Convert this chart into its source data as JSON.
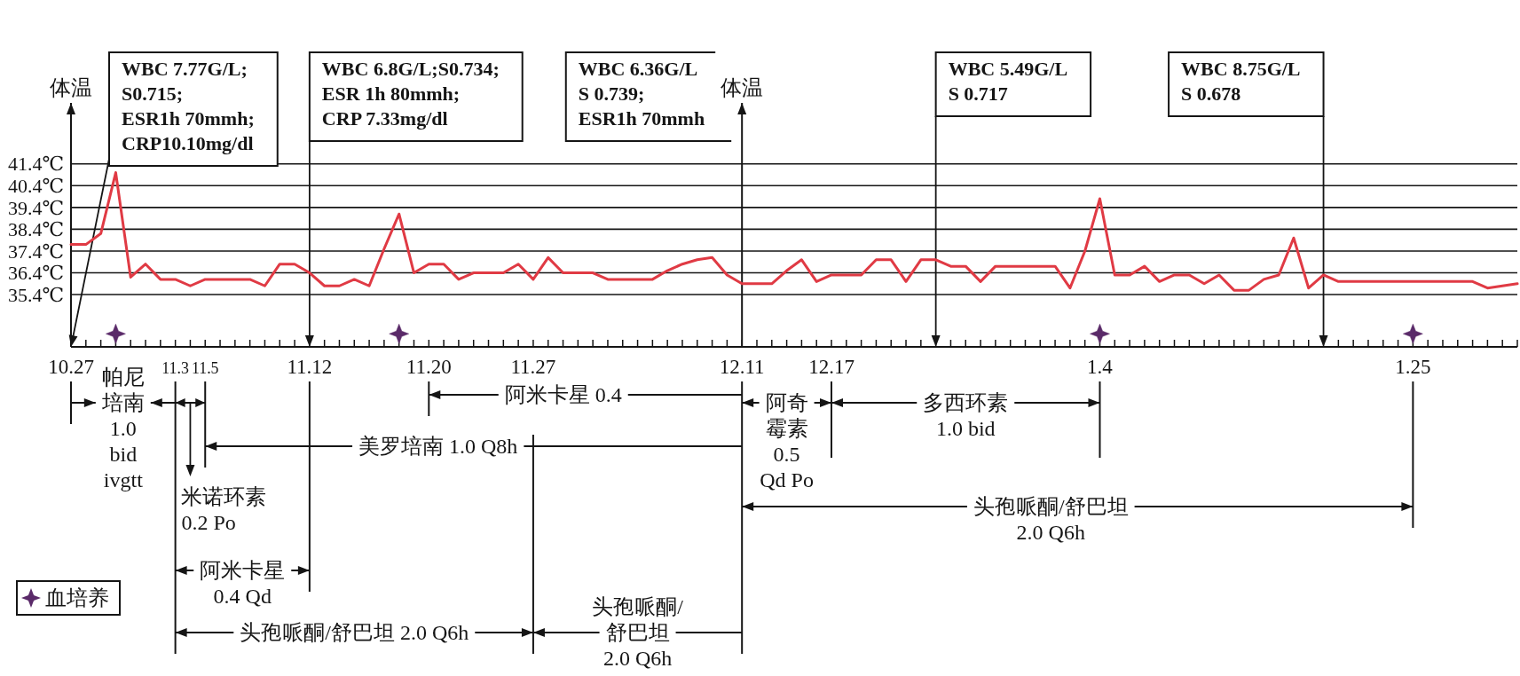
{
  "chart_data": {
    "type": "line",
    "ylabel": "体温",
    "ylim": [
      33,
      44.2
    ],
    "categories": [
      "10.27",
      null,
      null,
      null,
      null,
      null,
      null,
      "11.3",
      null,
      "11.5",
      null,
      null,
      null,
      null,
      null,
      null,
      "11.12",
      null,
      null,
      null,
      null,
      null,
      null,
      null,
      "11.20",
      null,
      null,
      null,
      null,
      null,
      null,
      "11.27",
      null,
      null,
      null,
      null,
      null,
      null,
      null,
      null,
      null,
      null,
      null,
      null,
      null,
      "12.11",
      null,
      null,
      null,
      null,
      null,
      "12.17",
      null,
      null,
      null,
      null,
      null,
      null,
      null,
      null,
      null,
      null,
      null,
      null,
      null,
      null,
      null,
      null,
      null,
      "1.4",
      null,
      null,
      null,
      null,
      null,
      null,
      null,
      null,
      null,
      null,
      null,
      null,
      null,
      null,
      null,
      null,
      null,
      null,
      null,
      null,
      "1.25",
      null,
      null,
      null,
      null,
      null,
      null,
      null
    ],
    "yticks": [
      {
        "value": 35.4,
        "label": "35.4℃"
      },
      {
        "value": 36.4,
        "label": "36.4℃"
      },
      {
        "value": 37.4,
        "label": "37.4℃"
      },
      {
        "value": 38.4,
        "label": "38.4℃"
      },
      {
        "value": 39.4,
        "label": "39.4℃"
      },
      {
        "value": 40.4,
        "label": "40.4℃"
      },
      {
        "value": 41.4,
        "label": "41.4℃"
      }
    ],
    "grid": "y",
    "legend": "bottom left",
    "series": [
      {
        "color": "#e03a44",
        "values": [
          37.7,
          37.7,
          38.2,
          41.0,
          36.2,
          36.8,
          36.1,
          36.1,
          35.8,
          36.1,
          36.1,
          36.1,
          36.1,
          35.8,
          36.8,
          36.8,
          36.4,
          35.8,
          35.8,
          36.1,
          35.8,
          37.5,
          39.1,
          36.4,
          36.8,
          36.8,
          36.1,
          36.4,
          36.4,
          36.4,
          36.8,
          36.1,
          37.1,
          36.4,
          36.4,
          36.4,
          36.1,
          36.1,
          36.1,
          36.1,
          36.5,
          36.8,
          37.0,
          37.1,
          36.3,
          35.9,
          35.9,
          35.9,
          36.5,
          37.0,
          36.0,
          36.3,
          36.3,
          36.3,
          37.0,
          37.0,
          36.0,
          37.0,
          37.0,
          36.7,
          36.7,
          36.0,
          36.7,
          36.7,
          36.7,
          36.7,
          36.7,
          35.7,
          37.4,
          39.8,
          36.3,
          36.3,
          36.7,
          36.0,
          36.3,
          36.3,
          35.9,
          36.3,
          35.6,
          35.6,
          36.1,
          36.3,
          38.0,
          35.7,
          36.3,
          36.0,
          36.0,
          36.0,
          36.0,
          36.0,
          36.0,
          36.0,
          36.0,
          36.0,
          36.0,
          35.7,
          35.8,
          35.9
        ]
      },
      {
        "type": "scatter",
        "name": "血培养",
        "color": "#5a2a69",
        "marker": "star",
        "values": [
          null,
          null,
          null,
          33.6,
          null,
          null,
          null,
          null,
          null,
          null,
          null,
          null,
          null,
          null,
          null,
          null,
          null,
          null,
          null,
          null,
          null,
          null,
          33.6,
          null,
          null,
          null,
          null,
          null,
          null,
          null,
          null,
          null,
          null,
          null,
          null,
          null,
          null,
          null,
          null,
          null,
          null,
          null,
          null,
          null,
          null,
          null,
          null,
          null,
          null,
          null,
          null,
          null,
          null,
          null,
          null,
          null,
          null,
          null,
          null,
          null,
          null,
          null,
          null,
          null,
          null,
          null,
          null,
          null,
          null,
          33.6,
          null,
          null,
          null,
          null,
          null,
          null,
          null,
          null,
          null,
          null,
          null,
          null,
          null,
          null,
          null,
          null,
          null,
          null,
          null,
          null,
          33.6,
          null,
          null,
          null,
          null,
          null,
          null,
          null
        ]
      }
    ],
    "ref_lines": [
      {
        "axis": "x",
        "value": "12.11",
        "label": "体温"
      }
    ],
    "annotations": [
      "WBC 7.77G/L;\nS0.715;\nESR1h 70mmh;\nCRP10.10mg/dl",
      "WBC 6.8G/L;S0.734;\nESR 1h 80mmh;\nCRP 7.33mg/dl",
      "WBC 6.36G/L\nS 0.739;\nESR1h 70mmh",
      "WBC 5.49G/L\nS 0.717",
      "WBC 8.75G/L\nS 0.678",
      "帕尼培南\n1.0\nbid\nivgtt",
      "米诺环素\n0.2 Po",
      "美罗培南 1.0 Q8h",
      "阿米卡星 0.4",
      "阿米卡星\n0.4 Qd",
      "头孢哌酮/舒巴坦 2.0 Q6h",
      "头孢哌酮/舒巴坦\n2.0 Q6h",
      "阿奇霉素\n0.5\nQd Po",
      "多西环素\n1.0 bid",
      "头孢哌酮/舒巴坦\n2.0 Q6h"
    ]
  }
}
